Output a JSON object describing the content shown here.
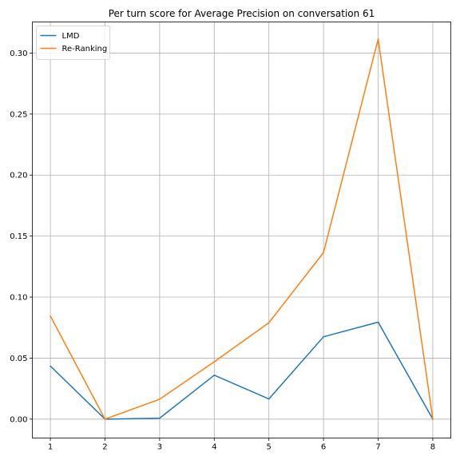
{
  "chart_data": {
    "type": "line",
    "title": "Per turn score for Average Precision on conversation 61",
    "xlabel": "",
    "ylabel": "",
    "x": [
      1,
      2,
      3,
      4,
      5,
      6,
      7,
      8
    ],
    "xticks": [
      "1",
      "2",
      "3",
      "4",
      "5",
      "6",
      "7",
      "8"
    ],
    "yticks": [
      "0.00",
      "0.05",
      "0.10",
      "0.15",
      "0.20",
      "0.25",
      "0.30"
    ],
    "xlim": [
      0.67,
      8.33
    ],
    "ylim": [
      -0.0155,
      0.3255
    ],
    "grid": true,
    "legend_position": "top-left",
    "series": [
      {
        "name": "LMD",
        "color": "#1f77b4",
        "values": [
          0.0435,
          0.0,
          0.0008,
          0.036,
          0.0165,
          0.0675,
          0.0795,
          0.0
        ]
      },
      {
        "name": "Re-Ranking",
        "color": "#ff7f0e",
        "values": [
          0.0845,
          0.0,
          0.0163,
          0.047,
          0.079,
          0.1365,
          0.3115,
          0.0
        ]
      }
    ]
  }
}
